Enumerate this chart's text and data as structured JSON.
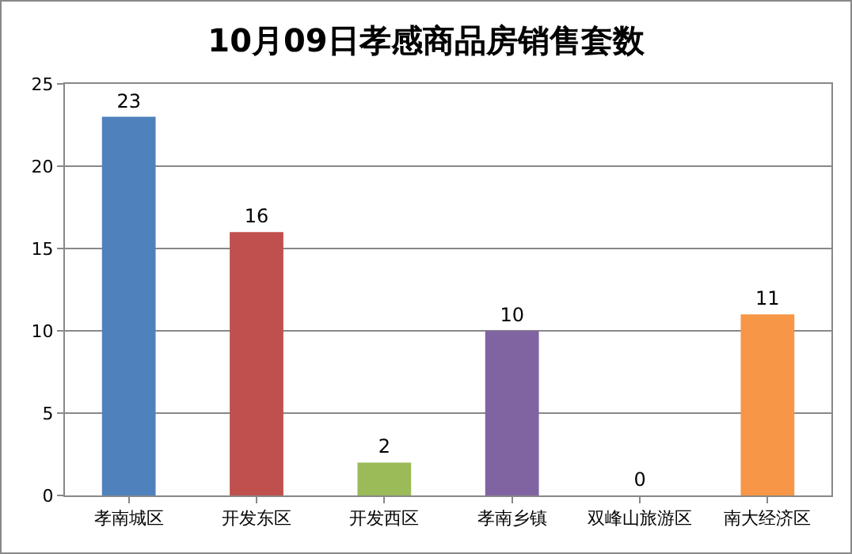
{
  "chart_data": {
    "type": "bar",
    "title": "10月09日孝感商品房销售套数",
    "categories": [
      "孝南城区",
      "开发东区",
      "开发西区",
      "孝南乡镇",
      "双峰山旅游区",
      "南大经济区"
    ],
    "values": [
      23,
      16,
      2,
      10,
      0,
      11
    ],
    "colors": [
      "#4f81bd",
      "#c0504d",
      "#9bbb59",
      "#8064a2",
      "#4bacc6",
      "#f79646"
    ],
    "ylim": [
      0,
      25
    ],
    "yticks": [
      0,
      5,
      10,
      15,
      20,
      25
    ],
    "grid": "y",
    "data_labels": true
  }
}
